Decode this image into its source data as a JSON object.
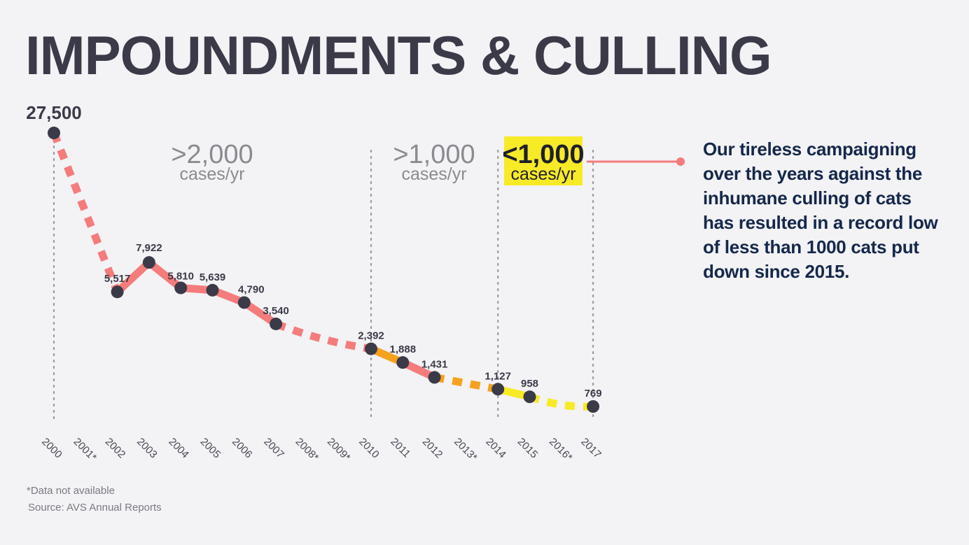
{
  "title": "IMPOUNDMENTS & CULLING",
  "chart_data": {
    "type": "line",
    "x": [
      "2000",
      "2001*",
      "2002",
      "2003",
      "2004",
      "2005",
      "2006",
      "2007",
      "2008*",
      "2009*",
      "2010",
      "2011",
      "2012",
      "2013*",
      "2014",
      "2015",
      "2016*",
      "2017"
    ],
    "points": [
      {
        "year": "2000",
        "value": 27500,
        "label": "27,500"
      },
      {
        "year": "2002",
        "value": 5517,
        "label": "5,517"
      },
      {
        "year": "2003",
        "value": 7922,
        "label": "7,922"
      },
      {
        "year": "2004",
        "value": 5810,
        "label": "5,810"
      },
      {
        "year": "2005",
        "value": 5639,
        "label": "5,639"
      },
      {
        "year": "2006",
        "value": 4790,
        "label": "4,790"
      },
      {
        "year": "2007",
        "value": 3540,
        "label": "3,540"
      },
      {
        "year": "2010",
        "value": 2392,
        "label": "2,392"
      },
      {
        "year": "2011",
        "value": 1888,
        "label": "1,888"
      },
      {
        "year": "2012",
        "value": 1431,
        "label": "1,431"
      },
      {
        "year": "2014",
        "value": 1127,
        "label": "1,127"
      },
      {
        "year": "2015",
        "value": 958,
        "label": "958"
      },
      {
        "year": "2017",
        "value": 769,
        "label": "769"
      }
    ],
    "missing_years": [
      "2001*",
      "2008*",
      "2009*",
      "2013*",
      "2016*"
    ],
    "ranges": [
      {
        "big": ">2,000",
        "small": "cases/yr",
        "from": "2000",
        "to": "2010"
      },
      {
        "big": ">1,000",
        "small": "cases/yr",
        "from": "2010",
        "to": "2014"
      },
      {
        "big": "<1,000",
        "small": "cases/yr",
        "from": "2014",
        "to": "2017",
        "highlight": true
      }
    ],
    "colors": {
      "over_2000": "#f47c7c",
      "over_1000": "#f6a21e",
      "under_1000": "#f7ea27",
      "point": "#3b3a48",
      "highlight_bg": "#f7ea27",
      "connector": "#f47c7c",
      "grid": "#9a9a9a"
    }
  },
  "callout": "Our tireless campaigning over the years against the inhumane culling of cats has resulted in a record low of less than 1000 cats put down since 2015.",
  "footnote": "*Data not available",
  "source": "Source: AVS Annual Reports"
}
